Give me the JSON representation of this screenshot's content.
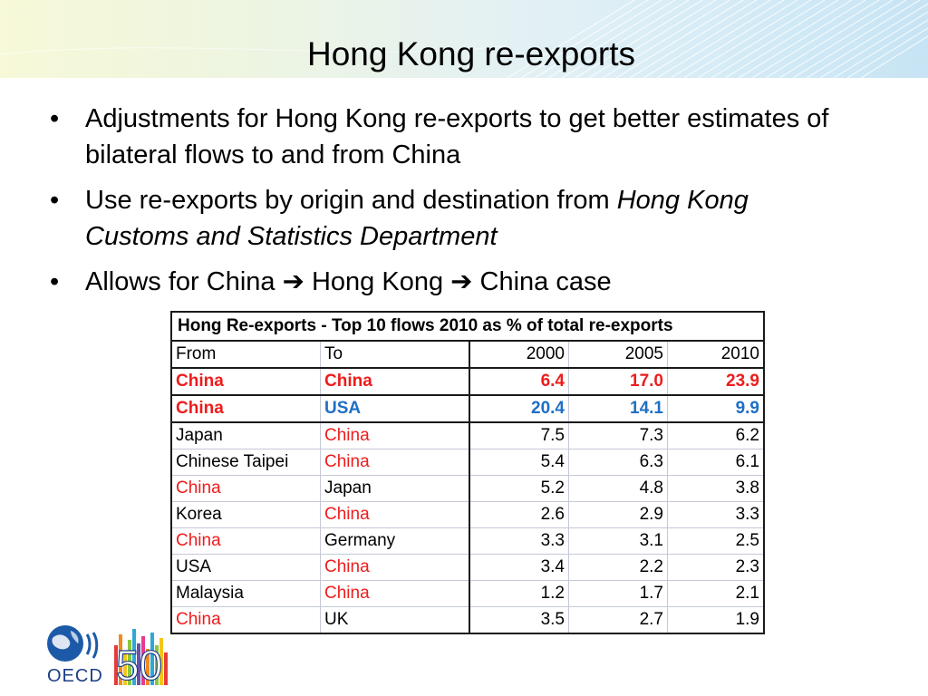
{
  "slide": {
    "title": "Hong Kong re-exports",
    "bullets": [
      {
        "text": "Adjustments for Hong Kong re-exports to get better estimates of bilateral flows to and from China"
      },
      {
        "text": "Use re-exports by origin and destination from ",
        "italic": "Hong Kong Customs and Statistics Department"
      },
      {
        "text_before": "Allows for China ",
        "arrow": "➔",
        "text_middle": " Hong Kong ",
        "text_after": " China case"
      }
    ],
    "bullet_glyph": "•"
  },
  "table": {
    "caption": "Hong Re-exports - Top 10 flows 2010 as % of total re-exports",
    "headers": [
      "From",
      "To",
      "2000",
      "2005",
      "2010"
    ],
    "rows": [
      {
        "from": "China",
        "to": "China",
        "v2000": "6.4",
        "v2005": "17.0",
        "v2010": "23.9"
      },
      {
        "from": "China",
        "to": "USA",
        "v2000": "20.4",
        "v2005": "14.1",
        "v2010": "9.9"
      },
      {
        "from": "Japan",
        "to": "China",
        "v2000": "7.5",
        "v2005": "7.3",
        "v2010": "6.2"
      },
      {
        "from": "Chinese Taipei",
        "to": "China",
        "v2000": "5.4",
        "v2005": "6.3",
        "v2010": "6.1"
      },
      {
        "from": "China",
        "to": "Japan",
        "v2000": "5.2",
        "v2005": "4.8",
        "v2010": "3.8"
      },
      {
        "from": "Korea",
        "to": "China",
        "v2000": "2.6",
        "v2005": "2.9",
        "v2010": "3.3"
      },
      {
        "from": "China",
        "to": "Germany",
        "v2000": "3.3",
        "v2005": "3.1",
        "v2010": "2.5"
      },
      {
        "from": "USA",
        "to": "China",
        "v2000": "3.4",
        "v2005": "2.2",
        "v2010": "2.3"
      },
      {
        "from": "Malaysia",
        "to": "China",
        "v2000": "1.2",
        "v2005": "1.7",
        "v2010": "2.1"
      },
      {
        "from": "China",
        "to": "UK",
        "v2000": "3.5",
        "v2005": "2.7",
        "v2010": "1.9"
      }
    ]
  },
  "colors": {
    "china_red": "#ee1c1c",
    "usa_blue": "#1f6fc4",
    "oecd_blue": "#1c3f86"
  },
  "logo": {
    "label": "OECD",
    "anniversary": "50",
    "icon": "oecd-globe-logo"
  }
}
